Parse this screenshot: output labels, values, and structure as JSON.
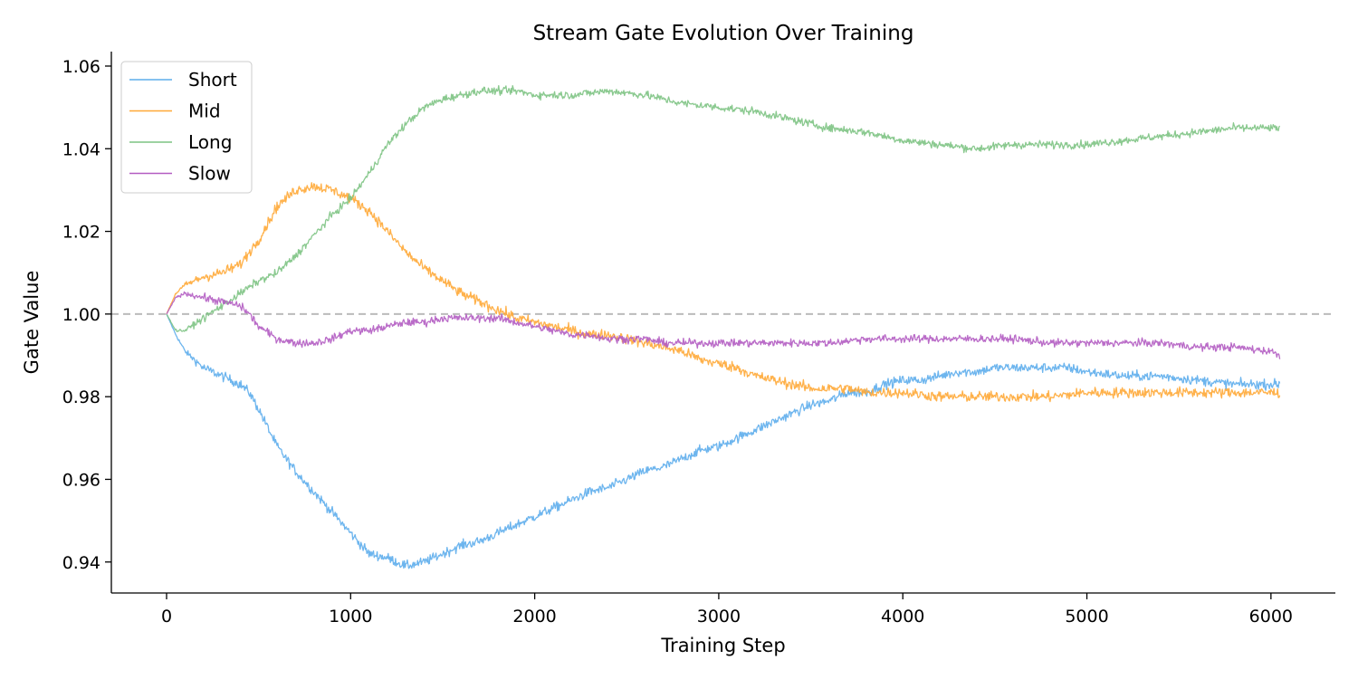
{
  "chart_data": {
    "type": "line",
    "title": "Stream Gate Evolution Over Training",
    "xlabel": "Training Step",
    "ylabel": "Gate Value",
    "xlim": [
      -300,
      6350
    ],
    "ylim": [
      0.9325,
      1.0635
    ],
    "xticks": [
      0,
      1000,
      2000,
      3000,
      4000,
      5000,
      6000
    ],
    "xtick_labels": [
      "0",
      "1000",
      "2000",
      "3000",
      "4000",
      "5000",
      "6000"
    ],
    "yticks": [
      0.94,
      0.96,
      0.98,
      1.0,
      1.02,
      1.04,
      1.06
    ],
    "ytick_labels": [
      "0.94",
      "0.96",
      "0.98",
      "1.00",
      "1.02",
      "1.04",
      "1.06"
    ],
    "grid": false,
    "legend_position": "top-left",
    "reference_line": {
      "y": 1.0,
      "style": "dashed",
      "color": "#bbbbbb"
    },
    "series": [
      {
        "name": "Short",
        "color": "#5DADEC",
        "points": [
          [
            0,
            1.0
          ],
          [
            50,
            0.995
          ],
          [
            100,
            0.991
          ],
          [
            200,
            0.987
          ],
          [
            300,
            0.985
          ],
          [
            400,
            0.983
          ],
          [
            450,
            0.981
          ],
          [
            500,
            0.977
          ],
          [
            600,
            0.968
          ],
          [
            700,
            0.962
          ],
          [
            800,
            0.957
          ],
          [
            900,
            0.952
          ],
          [
            1000,
            0.947
          ],
          [
            1100,
            0.942
          ],
          [
            1200,
            0.941
          ],
          [
            1300,
            0.939
          ],
          [
            1400,
            0.94
          ],
          [
            1500,
            0.942
          ],
          [
            1600,
            0.944
          ],
          [
            1700,
            0.945
          ],
          [
            1800,
            0.947
          ],
          [
            1900,
            0.949
          ],
          [
            2000,
            0.951
          ],
          [
            2100,
            0.953
          ],
          [
            2200,
            0.955
          ],
          [
            2300,
            0.957
          ],
          [
            2400,
            0.958
          ],
          [
            2500,
            0.96
          ],
          [
            2600,
            0.962
          ],
          [
            2700,
            0.963
          ],
          [
            2800,
            0.965
          ],
          [
            2900,
            0.967
          ],
          [
            3000,
            0.968
          ],
          [
            3100,
            0.97
          ],
          [
            3200,
            0.972
          ],
          [
            3300,
            0.974
          ],
          [
            3400,
            0.976
          ],
          [
            3500,
            0.978
          ],
          [
            3600,
            0.979
          ],
          [
            3700,
            0.981
          ],
          [
            3800,
            0.981
          ],
          [
            3900,
            0.983
          ],
          [
            4000,
            0.984
          ],
          [
            4100,
            0.984
          ],
          [
            4200,
            0.985
          ],
          [
            4300,
            0.986
          ],
          [
            4400,
            0.986
          ],
          [
            4500,
            0.987
          ],
          [
            4600,
            0.987
          ],
          [
            4700,
            0.987
          ],
          [
            4800,
            0.987
          ],
          [
            4900,
            0.987
          ],
          [
            5000,
            0.986
          ],
          [
            5200,
            0.985
          ],
          [
            5400,
            0.985
          ],
          [
            5600,
            0.984
          ],
          [
            5800,
            0.983
          ],
          [
            6000,
            0.983
          ],
          [
            6050,
            0.983
          ]
        ],
        "noise": 0.0011
      },
      {
        "name": "Mid",
        "color": "#FFA836",
        "points": [
          [
            0,
            1.0
          ],
          [
            50,
            1.005
          ],
          [
            100,
            1.007
          ],
          [
            200,
            1.009
          ],
          [
            300,
            1.01
          ],
          [
            400,
            1.012
          ],
          [
            500,
            1.018
          ],
          [
            600,
            1.026
          ],
          [
            700,
            1.03
          ],
          [
            800,
            1.031
          ],
          [
            900,
            1.03
          ],
          [
            1000,
            1.028
          ],
          [
            1100,
            1.025
          ],
          [
            1200,
            1.02
          ],
          [
            1300,
            1.015
          ],
          [
            1400,
            1.011
          ],
          [
            1500,
            1.008
          ],
          [
            1600,
            1.005
          ],
          [
            1700,
            1.003
          ],
          [
            1800,
            1.001
          ],
          [
            1900,
            0.999
          ],
          [
            2000,
            0.998
          ],
          [
            2100,
            0.997
          ],
          [
            2200,
            0.996
          ],
          [
            2300,
            0.995
          ],
          [
            2400,
            0.995
          ],
          [
            2500,
            0.994
          ],
          [
            2600,
            0.993
          ],
          [
            2700,
            0.992
          ],
          [
            2800,
            0.991
          ],
          [
            2900,
            0.989
          ],
          [
            3000,
            0.988
          ],
          [
            3100,
            0.987
          ],
          [
            3200,
            0.985
          ],
          [
            3300,
            0.984
          ],
          [
            3400,
            0.983
          ],
          [
            3500,
            0.982
          ],
          [
            3600,
            0.982
          ],
          [
            3700,
            0.982
          ],
          [
            3800,
            0.981
          ],
          [
            3900,
            0.981
          ],
          [
            4000,
            0.981
          ],
          [
            4200,
            0.98
          ],
          [
            4400,
            0.98
          ],
          [
            4600,
            0.98
          ],
          [
            4800,
            0.98
          ],
          [
            5000,
            0.981
          ],
          [
            5200,
            0.981
          ],
          [
            5400,
            0.981
          ],
          [
            5600,
            0.981
          ],
          [
            5800,
            0.981
          ],
          [
            6000,
            0.981
          ],
          [
            6050,
            0.981
          ]
        ],
        "noise": 0.0012
      },
      {
        "name": "Long",
        "color": "#7DC383",
        "points": [
          [
            0,
            1.0
          ],
          [
            50,
            0.996
          ],
          [
            100,
            0.996
          ],
          [
            200,
            0.999
          ],
          [
            300,
            1.002
          ],
          [
            400,
            1.005
          ],
          [
            500,
            1.008
          ],
          [
            600,
            1.01
          ],
          [
            700,
            1.014
          ],
          [
            800,
            1.019
          ],
          [
            900,
            1.024
          ],
          [
            1000,
            1.028
          ],
          [
            1100,
            1.034
          ],
          [
            1200,
            1.041
          ],
          [
            1300,
            1.046
          ],
          [
            1400,
            1.05
          ],
          [
            1500,
            1.052
          ],
          [
            1600,
            1.053
          ],
          [
            1700,
            1.054
          ],
          [
            1800,
            1.054
          ],
          [
            1900,
            1.054
          ],
          [
            2000,
            1.053
          ],
          [
            2200,
            1.053
          ],
          [
            2400,
            1.054
          ],
          [
            2600,
            1.053
          ],
          [
            2800,
            1.051
          ],
          [
            3000,
            1.05
          ],
          [
            3200,
            1.049
          ],
          [
            3400,
            1.047
          ],
          [
            3600,
            1.045
          ],
          [
            3800,
            1.044
          ],
          [
            4000,
            1.042
          ],
          [
            4200,
            1.041
          ],
          [
            4400,
            1.04
          ],
          [
            4600,
            1.041
          ],
          [
            4800,
            1.041
          ],
          [
            5000,
            1.041
          ],
          [
            5200,
            1.042
          ],
          [
            5400,
            1.043
          ],
          [
            5600,
            1.044
          ],
          [
            5800,
            1.045
          ],
          [
            6000,
            1.045
          ],
          [
            6050,
            1.045
          ]
        ],
        "noise": 0.0009
      },
      {
        "name": "Slow",
        "color": "#B35CC2",
        "points": [
          [
            0,
            1.0
          ],
          [
            50,
            1.004
          ],
          [
            100,
            1.005
          ],
          [
            200,
            1.004
          ],
          [
            300,
            1.003
          ],
          [
            400,
            1.002
          ],
          [
            450,
            1.0
          ],
          [
            500,
            0.997
          ],
          [
            600,
            0.994
          ],
          [
            700,
            0.993
          ],
          [
            800,
            0.993
          ],
          [
            900,
            0.994
          ],
          [
            1000,
            0.996
          ],
          [
            1100,
            0.996
          ],
          [
            1200,
            0.997
          ],
          [
            1300,
            0.998
          ],
          [
            1400,
            0.998
          ],
          [
            1500,
            0.999
          ],
          [
            1600,
            0.999
          ],
          [
            1700,
            0.999
          ],
          [
            1800,
            0.999
          ],
          [
            1900,
            0.998
          ],
          [
            2000,
            0.997
          ],
          [
            2100,
            0.996
          ],
          [
            2200,
            0.995
          ],
          [
            2300,
            0.995
          ],
          [
            2400,
            0.994
          ],
          [
            2500,
            0.994
          ],
          [
            2600,
            0.994
          ],
          [
            2700,
            0.993
          ],
          [
            2800,
            0.993
          ],
          [
            3000,
            0.993
          ],
          [
            3200,
            0.993
          ],
          [
            3400,
            0.993
          ],
          [
            3600,
            0.993
          ],
          [
            3800,
            0.994
          ],
          [
            4000,
            0.994
          ],
          [
            4200,
            0.994
          ],
          [
            4400,
            0.994
          ],
          [
            4600,
            0.994
          ],
          [
            4800,
            0.993
          ],
          [
            5000,
            0.993
          ],
          [
            5200,
            0.993
          ],
          [
            5400,
            0.993
          ],
          [
            5600,
            0.992
          ],
          [
            5800,
            0.992
          ],
          [
            6000,
            0.991
          ],
          [
            6050,
            0.99
          ]
        ],
        "noise": 0.0009
      }
    ]
  }
}
